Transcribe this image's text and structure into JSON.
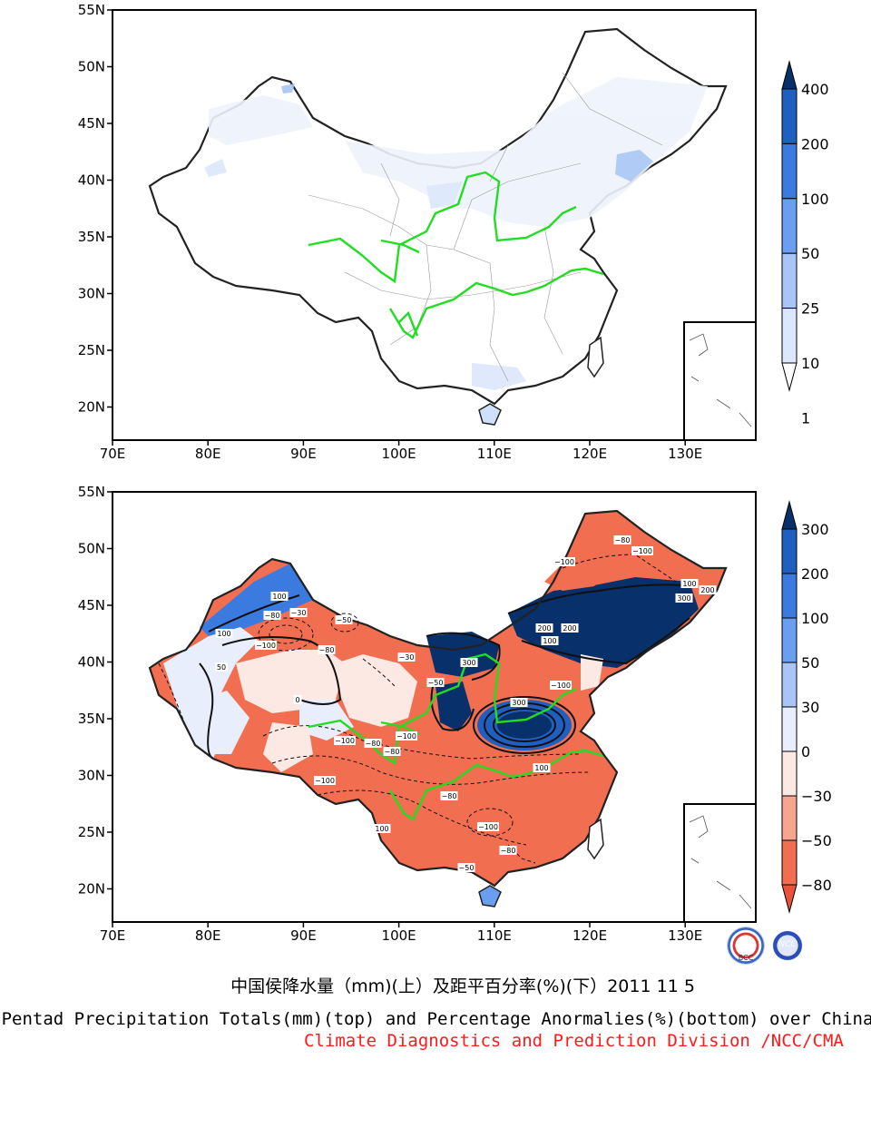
{
  "axes": {
    "lat_labels": [
      "55N",
      "50N",
      "45N",
      "40N",
      "35N",
      "30N",
      "25N",
      "20N"
    ],
    "lon_labels": [
      "70E",
      "80E",
      "90E",
      "100E",
      "110E",
      "120E",
      "130E"
    ]
  },
  "top_map": {
    "colorbar": {
      "labels": [
        "400",
        "200",
        "100",
        "50",
        "25",
        "10",
        "1"
      ],
      "colors": [
        "#08306b",
        "#1f5fbf",
        "#3b7be0",
        "#6a9ef0",
        "#a8c6f5",
        "#dbe7fb",
        "#ffffff"
      ]
    }
  },
  "bottom_map": {
    "colorbar": {
      "labels": [
        "300",
        "200",
        "100",
        "50",
        "30",
        "0",
        "−30",
        "−50",
        "−80"
      ],
      "colors": [
        "#08306b",
        "#1f5fbf",
        "#3b7be0",
        "#6a9ef0",
        "#a8c6f5",
        "#e8eefb",
        "#fde9e4",
        "#f7a58f",
        "#f26e50",
        "#e8533a"
      ]
    },
    "contour_labels": [
      "−100",
      "−80",
      "−50",
      "−30",
      "0",
      "50",
      "100",
      "200",
      "300"
    ]
  },
  "logos": {
    "left": "BCC",
    "right": "NCC"
  },
  "captions": {
    "chinese": "中国侯降水量（mm)(上）及距平百分率(%)(下）2011 11 5",
    "english": "Pentad Precipitation Totals(mm)(top) and Percentage Anormalies(%)(bottom) over China",
    "org": "Climate Diagnostics and Prediction Division /NCC/CMA"
  }
}
